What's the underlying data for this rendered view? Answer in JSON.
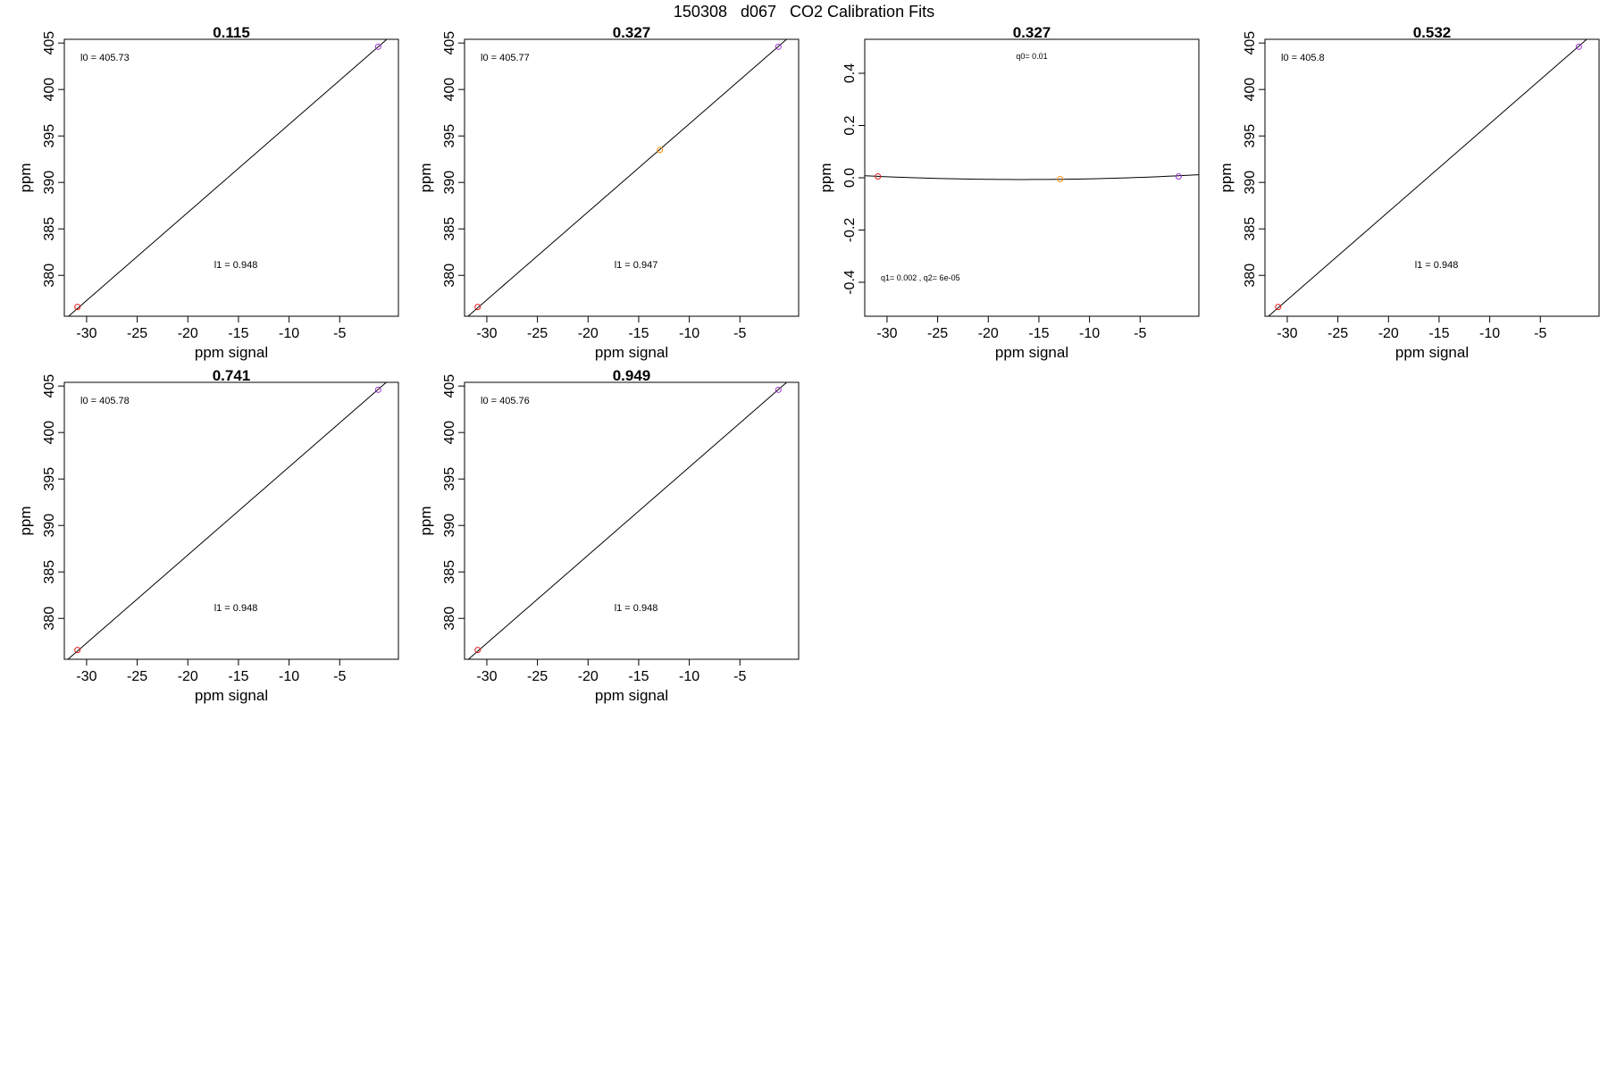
{
  "figure": {
    "title": "150308   d067   CO2 Calibration Fits",
    "colors": {
      "low": "#e31a1c",
      "mid": "#ff8c00",
      "high": "#9932cc",
      "line": "#000000"
    }
  },
  "chart_data": [
    {
      "type": "scatter",
      "title": "0.115",
      "xlabel": "ppm signal",
      "ylabel": "ppm",
      "xlim": [
        -32.2,
        0.8
      ],
      "ylim": [
        375.6,
        405.4
      ],
      "xticks": [
        -30,
        -25,
        -20,
        -15,
        -10,
        -5
      ],
      "yticks": [
        380,
        385,
        390,
        395,
        400,
        405
      ],
      "points": [
        {
          "x": -30.9,
          "y": 376.6,
          "color": "low"
        },
        {
          "x": -1.2,
          "y": 404.6,
          "color": "high"
        }
      ],
      "fit": {
        "kind": "linear",
        "l0": 405.73,
        "l1": 0.948
      },
      "annotations": [
        {
          "text": "l0 =  405.73"
        },
        {
          "text": "l1 =  0.948"
        }
      ]
    },
    {
      "type": "scatter",
      "title": "0.327",
      "xlabel": "ppm signal",
      "ylabel": "ppm",
      "xlim": [
        -32.2,
        0.8
      ],
      "ylim": [
        375.6,
        405.4
      ],
      "xticks": [
        -30,
        -25,
        -20,
        -15,
        -10,
        -5
      ],
      "yticks": [
        380,
        385,
        390,
        395,
        400,
        405
      ],
      "points": [
        {
          "x": -30.9,
          "y": 376.6,
          "color": "low"
        },
        {
          "x": -12.9,
          "y": 393.5,
          "color": "mid"
        },
        {
          "x": -1.2,
          "y": 404.6,
          "color": "high"
        }
      ],
      "fit": {
        "kind": "linear",
        "l0": 405.77,
        "l1": 0.947
      },
      "annotations": [
        {
          "text": "l0 =  405.77"
        },
        {
          "text": "l1 =  0.947"
        }
      ]
    },
    {
      "type": "scatter",
      "title": "0.327",
      "xlabel": "ppm signal",
      "ylabel": "ppm",
      "xlim": [
        -32.2,
        0.8
      ],
      "ylim": [
        -0.53,
        0.53
      ],
      "xticks": [
        -30,
        -25,
        -20,
        -15,
        -10,
        -5
      ],
      "yticks": [
        -0.4,
        -0.2,
        0.0,
        0.2,
        0.4
      ],
      "ytick_labels": [
        "-0.4",
        "-0.2",
        "0.0",
        "0.2",
        "0.4"
      ],
      "points": [
        {
          "x": -30.9,
          "y": 0.005,
          "color": "low"
        },
        {
          "x": -12.9,
          "y": -0.005,
          "color": "mid"
        },
        {
          "x": -1.2,
          "y": 0.005,
          "color": "high"
        }
      ],
      "fit": {
        "kind": "quadratic",
        "q0": 0.01,
        "q1": 0.002,
        "q2": 6e-05
      },
      "annotations": [
        {
          "text": "q0= 0.01"
        },
        {
          "text": "q1= 0.002 , q2= 6e-05"
        }
      ]
    },
    {
      "type": "scatter",
      "title": "0.532",
      "xlabel": "ppm signal",
      "ylabel": "ppm",
      "xlim": [
        -32.2,
        0.8
      ],
      "ylim": [
        375.6,
        405.4
      ],
      "xticks": [
        -30,
        -25,
        -20,
        -15,
        -10,
        -5
      ],
      "yticks": [
        380,
        385,
        390,
        395,
        400,
        405
      ],
      "points": [
        {
          "x": -30.9,
          "y": 376.6,
          "color": "low"
        },
        {
          "x": -1.2,
          "y": 404.6,
          "color": "high"
        }
      ],
      "fit": {
        "kind": "linear",
        "l0": 405.8,
        "l1": 0.948
      },
      "annotations": [
        {
          "text": "l0 =  405.8"
        },
        {
          "text": "l1 =  0.948"
        }
      ]
    },
    {
      "type": "scatter",
      "title": "0.741",
      "xlabel": "ppm signal",
      "ylabel": "ppm",
      "xlim": [
        -32.2,
        0.8
      ],
      "ylim": [
        375.6,
        405.4
      ],
      "xticks": [
        -30,
        -25,
        -20,
        -15,
        -10,
        -5
      ],
      "yticks": [
        380,
        385,
        390,
        395,
        400,
        405
      ],
      "points": [
        {
          "x": -30.9,
          "y": 376.6,
          "color": "low"
        },
        {
          "x": -1.2,
          "y": 404.6,
          "color": "high"
        }
      ],
      "fit": {
        "kind": "linear",
        "l0": 405.78,
        "l1": 0.948
      },
      "annotations": [
        {
          "text": "l0 =  405.78"
        },
        {
          "text": "l1 =  0.948"
        }
      ]
    },
    {
      "type": "scatter",
      "title": "0.949",
      "xlabel": "ppm signal",
      "ylabel": "ppm",
      "xlim": [
        -32.2,
        0.8
      ],
      "ylim": [
        375.6,
        405.4
      ],
      "xticks": [
        -30,
        -25,
        -20,
        -15,
        -10,
        -5
      ],
      "yticks": [
        380,
        385,
        390,
        395,
        400,
        405
      ],
      "points": [
        {
          "x": -30.9,
          "y": 376.6,
          "color": "low"
        },
        {
          "x": -1.2,
          "y": 404.6,
          "color": "high"
        }
      ],
      "fit": {
        "kind": "linear",
        "l0": 405.76,
        "l1": 0.948
      },
      "annotations": [
        {
          "text": "l0 =  405.76"
        },
        {
          "text": "l1 =  0.948"
        }
      ]
    }
  ]
}
